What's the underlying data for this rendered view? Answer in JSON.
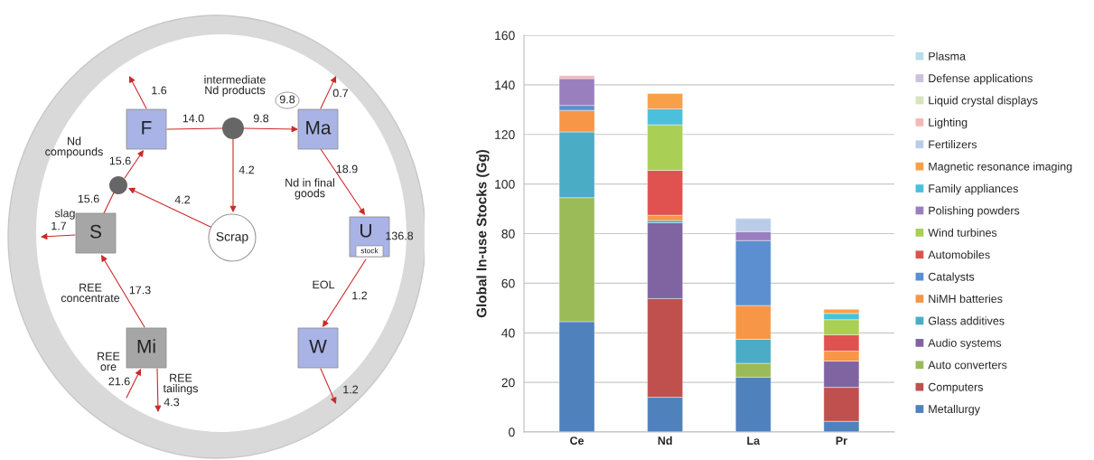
{
  "chart_data": [
    {
      "type": "other",
      "annotations": [
        "F",
        "Ma",
        "S",
        "U",
        "stock",
        "Mi",
        "W",
        "Scrap",
        "1.6",
        "14.0",
        "9.8",
        "9.8",
        "0.7",
        "4.2",
        "4.2",
        "15.6",
        "15.6",
        "18.9",
        "136.8",
        "1.2",
        "1.2",
        "17.3",
        "21.6",
        "4.3",
        "1.7",
        "intermediate\nNd products",
        "Nd\ncompounds",
        "Nd in final\ngoods",
        "slag",
        "REE\nconcentrate",
        "REE\nore",
        "REE\ntailings",
        "EOL"
      ]
    },
    {
      "type": "bar",
      "stacked": true,
      "ylabel": "Global In-use Stocks (Gg)",
      "categories": [
        "Ce",
        "Nd",
        "La",
        "Pr"
      ],
      "ylim": [
        0,
        160
      ],
      "yticks": [
        0,
        20,
        40,
        60,
        80,
        100,
        120,
        140,
        160
      ],
      "grid": "y",
      "legend": "right",
      "series": [
        {
          "name": "Metallurgy",
          "color": "#4f81bd",
          "values": [
            44.5,
            14.0,
            22.1,
            4.3
          ]
        },
        {
          "name": "Computers",
          "color": "#c0504d",
          "values": [
            null,
            39.8,
            null,
            13.7
          ]
        },
        {
          "name": "Auto converters",
          "color": "#9bbb59",
          "values": [
            50.0,
            null,
            5.6,
            null
          ]
        },
        {
          "name": "Audio systems",
          "color": "#8064a2",
          "values": [
            null,
            30.6,
            null,
            10.6
          ]
        },
        {
          "name": "Glass additives",
          "color": "#4bacc6",
          "values": [
            26.5,
            0.9,
            9.7,
            null
          ]
        },
        {
          "name": "NiMH batteries",
          "color": "#f79646",
          "values": [
            8.7,
            2.1,
            13.6,
            4.0
          ]
        },
        {
          "name": "Catalysts",
          "color": "#5b8fd0",
          "values": [
            2.0,
            null,
            26.2,
            null
          ]
        },
        {
          "name": "Automobiles",
          "color": "#e0524f",
          "values": [
            null,
            18.1,
            null,
            6.6
          ]
        },
        {
          "name": "Wind turbines",
          "color": "#a9cf54",
          "values": [
            null,
            18.4,
            null,
            6.1
          ]
        },
        {
          "name": "Polishing powders",
          "color": "#9a7fbf",
          "values": [
            10.8,
            null,
            3.6,
            null
          ]
        },
        {
          "name": "Family appliances",
          "color": "#4bc0dc",
          "values": [
            null,
            6.4,
            null,
            2.5
          ]
        },
        {
          "name": "Magnetic resonance imaging",
          "color": "#f8a048",
          "values": [
            null,
            6.2,
            null,
            1.7
          ]
        },
        {
          "name": "Fertilizers",
          "color": "#b9cde8",
          "values": [
            null,
            null,
            5.3,
            null
          ]
        },
        {
          "name": "Lighting",
          "color": "#f2b8b8",
          "values": [
            1.2,
            null,
            null,
            null
          ]
        },
        {
          "name": "Liquid crystal displays",
          "color": "#d7e4bd",
          "values": [
            null,
            null,
            null,
            null
          ]
        },
        {
          "name": "Defense applications",
          "color": "#ccc1da",
          "values": [
            null,
            null,
            null,
            null
          ]
        },
        {
          "name": "Plasma",
          "color": "#b7dee8",
          "values": [
            null,
            null,
            null,
            null
          ]
        }
      ]
    }
  ]
}
